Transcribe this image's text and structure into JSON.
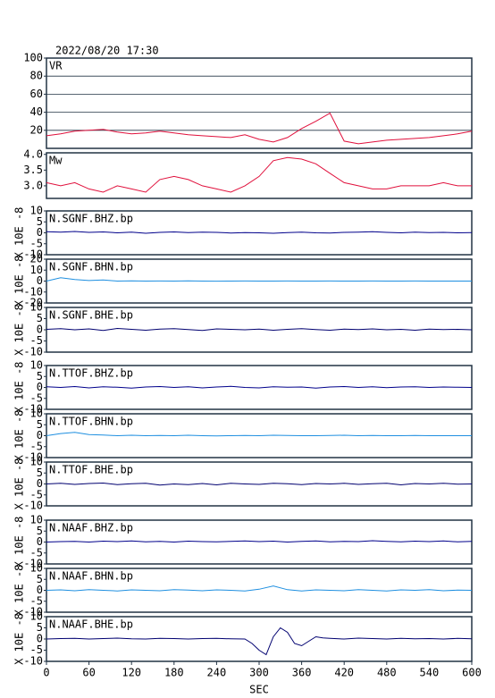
{
  "chart_data": [
    {
      "type": "line",
      "title": "2022/08/20 17:30",
      "label": "VR",
      "xlim": [
        0,
        600
      ],
      "ylim": [
        0,
        100
      ],
      "yticks": [
        20,
        40,
        60,
        80,
        100
      ],
      "grid": true,
      "x": [
        0,
        20,
        40,
        60,
        80,
        100,
        120,
        140,
        160,
        180,
        200,
        220,
        240,
        260,
        280,
        300,
        320,
        340,
        360,
        380,
        400,
        420,
        440,
        460,
        480,
        500,
        520,
        540,
        560,
        580,
        600
      ],
      "series": [
        {
          "color": "#e0103c",
          "values": [
            14,
            16,
            19,
            20,
            21,
            18,
            16,
            17,
            19,
            17,
            15,
            14,
            13,
            12,
            15,
            10,
            7,
            12,
            22,
            30,
            39,
            8,
            5,
            7,
            9,
            10,
            11,
            12,
            14,
            16,
            19
          ]
        }
      ]
    },
    {
      "type": "line",
      "label": "Mw",
      "xlim": [
        0,
        600
      ],
      "ylim": [
        2.6,
        4.05
      ],
      "yticks": [
        {
          "value": 3,
          "label": "3.0"
        },
        3.5,
        {
          "value": 4,
          "label": "4.0"
        }
      ],
      "grid": false,
      "x": [
        0,
        20,
        40,
        60,
        80,
        100,
        120,
        140,
        160,
        180,
        200,
        220,
        240,
        260,
        280,
        300,
        320,
        340,
        360,
        380,
        400,
        420,
        440,
        460,
        480,
        500,
        520,
        540,
        560,
        580,
        600
      ],
      "series": [
        {
          "color": "#e0103c",
          "values": [
            3.1,
            3.0,
            3.1,
            2.9,
            2.8,
            3.0,
            2.9,
            2.8,
            3.2,
            3.3,
            3.2,
            3.0,
            2.9,
            2.8,
            3.0,
            3.3,
            3.8,
            3.9,
            3.85,
            3.7,
            3.4,
            3.1,
            3.0,
            2.9,
            2.9,
            3.0,
            3.0,
            3.0,
            3.1,
            3.0,
            3.0
          ]
        }
      ]
    },
    {
      "type": "line",
      "label": "N.SGNF.BHZ.bp",
      "ylabel": "X 10E -8",
      "xlim": [
        0,
        600
      ],
      "ylim": [
        -10,
        10
      ],
      "yticks": [
        -10,
        -5,
        0,
        5,
        10
      ],
      "grid": false,
      "x": [
        0,
        20,
        40,
        60,
        80,
        100,
        120,
        140,
        160,
        180,
        200,
        220,
        240,
        260,
        280,
        300,
        320,
        340,
        360,
        380,
        400,
        420,
        440,
        460,
        480,
        500,
        520,
        540,
        560,
        580,
        600
      ],
      "series": [
        {
          "color": "#00008b",
          "values": [
            0.5,
            0.3,
            0.6,
            0.2,
            0.4,
            0,
            0.3,
            -0.2,
            0.2,
            0.4,
            0.1,
            0.3,
            0.2,
            -0.1,
            0.1,
            0,
            -0.2,
            0.1,
            0.3,
            0,
            -0.1,
            0.2,
            0.3,
            0.5,
            0.2,
            0,
            0.3,
            0.1,
            0.2,
            0,
            0.1
          ]
        }
      ]
    },
    {
      "type": "line",
      "label": "N.SGNF.BHN.bp",
      "ylabel": "X 10E -8",
      "xlim": [
        0,
        600
      ],
      "ylim": [
        -20,
        20
      ],
      "yticks": [
        -20,
        -10,
        0,
        10,
        20
      ],
      "grid": false,
      "x": [
        0,
        20,
        40,
        60,
        80,
        100,
        120,
        140,
        160,
        180,
        200,
        220,
        240,
        260,
        280,
        300,
        320,
        340,
        360,
        380,
        400,
        420,
        440,
        460,
        480,
        500,
        520,
        540,
        560,
        580,
        600
      ],
      "series": [
        {
          "color": "#1e8fe0",
          "values": [
            0,
            3,
            1.5,
            0.5,
            1,
            0,
            0.2,
            0,
            0.1,
            0,
            0.2,
            0,
            -0.1,
            0,
            0.1,
            0,
            0,
            0.1,
            0,
            0,
            0.1,
            0,
            0,
            0.1,
            0,
            0,
            0.1,
            0,
            0,
            0,
            0
          ]
        }
      ]
    },
    {
      "type": "line",
      "label": "N.SGNF.BHE.bp",
      "ylabel": "X 10E -8",
      "xlim": [
        0,
        600
      ],
      "ylim": [
        -10,
        10
      ],
      "yticks": [
        -10,
        -5,
        0,
        5,
        10
      ],
      "grid": false,
      "x": [
        0,
        20,
        40,
        60,
        80,
        100,
        120,
        140,
        160,
        180,
        200,
        220,
        240,
        260,
        280,
        300,
        320,
        340,
        360,
        380,
        400,
        420,
        440,
        460,
        480,
        500,
        520,
        540,
        560,
        580,
        600
      ],
      "series": [
        {
          "color": "#000070",
          "values": [
            0.2,
            0.5,
            0,
            0.4,
            -0.3,
            0.6,
            0.2,
            -0.2,
            0.3,
            0.5,
            0.1,
            -0.3,
            0.4,
            0.2,
            0,
            0.3,
            -0.2,
            0.2,
            0.5,
            0.1,
            -0.2,
            0.3,
            0.1,
            0.4,
            0,
            0.2,
            -0.2,
            0.3,
            0.1,
            0.2,
            0
          ]
        }
      ]
    },
    {
      "type": "line",
      "label": "N.TTOF.BHZ.bp",
      "ylabel": "X 10E -8",
      "xlim": [
        0,
        600
      ],
      "ylim": [
        -10,
        10
      ],
      "yticks": [
        -10,
        -5,
        0,
        5,
        10
      ],
      "grid": false,
      "x": [
        0,
        20,
        40,
        60,
        80,
        100,
        120,
        140,
        160,
        180,
        200,
        220,
        240,
        260,
        280,
        300,
        320,
        340,
        360,
        380,
        400,
        420,
        440,
        460,
        480,
        500,
        520,
        540,
        560,
        580,
        600
      ],
      "series": [
        {
          "color": "#00008b",
          "values": [
            0.3,
            0,
            0.4,
            -0.2,
            0.3,
            0.1,
            -0.3,
            0.2,
            0.4,
            0,
            0.3,
            -0.2,
            0.2,
            0.5,
            0,
            -0.2,
            0.3,
            0.1,
            0.2,
            -0.3,
            0.2,
            0.4,
            0,
            0.3,
            -0.1,
            0.2,
            0.3,
            0,
            0.2,
            0.1,
            0
          ]
        }
      ]
    },
    {
      "type": "line",
      "label": "N.TTOF.BHN.bp",
      "ylabel": "X 10E -8",
      "xlim": [
        0,
        600
      ],
      "ylim": [
        -10,
        10
      ],
      "yticks": [
        -10,
        -5,
        0,
        5,
        10
      ],
      "grid": false,
      "x": [
        0,
        20,
        40,
        60,
        80,
        100,
        120,
        140,
        160,
        180,
        200,
        220,
        240,
        260,
        280,
        300,
        320,
        340,
        360,
        380,
        400,
        420,
        440,
        460,
        480,
        500,
        520,
        540,
        560,
        580,
        600
      ],
      "series": [
        {
          "color": "#1e8fe0",
          "values": [
            0,
            1,
            1.5,
            0.5,
            0.3,
            0,
            0.2,
            0,
            0.1,
            0,
            0.2,
            0,
            -0.1,
            0,
            0.1,
            0,
            0.2,
            0.1,
            0,
            0,
            0.1,
            0.2,
            0,
            0.1,
            0,
            0,
            0.1,
            0,
            0,
            0,
            0
          ]
        }
      ]
    },
    {
      "type": "line",
      "label": "N.TTOF.BHE.bp",
      "ylabel": "X 10E -8",
      "xlim": [
        0,
        600
      ],
      "ylim": [
        -10,
        10
      ],
      "yticks": [
        -10,
        -5,
        0,
        5,
        10
      ],
      "grid": false,
      "x": [
        0,
        20,
        40,
        60,
        80,
        100,
        120,
        140,
        160,
        180,
        200,
        220,
        240,
        260,
        280,
        300,
        320,
        340,
        360,
        380,
        400,
        420,
        440,
        460,
        480,
        500,
        520,
        540,
        560,
        580,
        600
      ],
      "series": [
        {
          "color": "#000070",
          "values": [
            0,
            0.3,
            -0.2,
            0.2,
            0.4,
            -0.3,
            0.1,
            0.3,
            -0.5,
            0,
            -0.3,
            0.2,
            -0.4,
            0.3,
            0,
            -0.2,
            0.3,
            0.1,
            -0.3,
            0.2,
            0,
            0.3,
            -0.2,
            0.1,
            0.3,
            -0.4,
            0.2,
            0,
            0.3,
            -0.1,
            0
          ]
        }
      ]
    },
    {
      "type": "line",
      "label": "N.NAAF.BHZ.bp",
      "ylabel": "X 10E -8",
      "xlim": [
        0,
        600
      ],
      "ylim": [
        -10,
        10
      ],
      "yticks": [
        -10,
        -5,
        0,
        5,
        10
      ],
      "grid": false,
      "x": [
        0,
        20,
        40,
        60,
        80,
        100,
        120,
        140,
        160,
        180,
        200,
        220,
        240,
        260,
        280,
        300,
        320,
        340,
        360,
        380,
        400,
        420,
        440,
        460,
        480,
        500,
        520,
        540,
        560,
        580,
        600
      ],
      "series": [
        {
          "color": "#00008b",
          "values": [
            0,
            0.2,
            0.3,
            0,
            0.4,
            0.2,
            0.5,
            0.1,
            0.3,
            0,
            0.4,
            0.2,
            0.1,
            0.3,
            0.5,
            0.2,
            0.4,
            0,
            0.3,
            0.5,
            0.1,
            0.3,
            0.2,
            0.6,
            0.3,
            0.1,
            0.4,
            0.2,
            0.5,
            0.1,
            0.3
          ]
        }
      ]
    },
    {
      "type": "line",
      "label": "N.NAAF.BHN.bp",
      "ylabel": "X 10E -8",
      "xlim": [
        0,
        600
      ],
      "ylim": [
        -10,
        10
      ],
      "yticks": [
        -10,
        -5,
        0,
        5,
        10
      ],
      "grid": false,
      "x": [
        0,
        20,
        40,
        60,
        80,
        100,
        120,
        140,
        160,
        180,
        200,
        220,
        240,
        260,
        280,
        300,
        320,
        340,
        360,
        380,
        400,
        420,
        440,
        460,
        480,
        500,
        520,
        540,
        560,
        580,
        600
      ],
      "series": [
        {
          "color": "#1e8fe0",
          "values": [
            0,
            0.2,
            -0.2,
            0.3,
            0,
            -0.3,
            0.2,
            0,
            -0.2,
            0.3,
            0.1,
            -0.2,
            0.2,
            0,
            -0.3,
            0.5,
            2,
            0.3,
            -0.3,
            0.2,
            0,
            -0.2,
            0.3,
            0,
            -0.3,
            0.2,
            0,
            0.3,
            -0.2,
            0.1,
            0
          ]
        }
      ]
    },
    {
      "type": "line",
      "label": "N.NAAF.BHE.bp",
      "ylabel": "X 10E -8",
      "xlabel": "SEC",
      "xlim": [
        0,
        600
      ],
      "ylim": [
        -10,
        10
      ],
      "yticks": [
        -10,
        -5,
        0,
        5,
        10
      ],
      "grid": false,
      "xticks": [
        0,
        60,
        120,
        180,
        240,
        300,
        360,
        420,
        480,
        540,
        600
      ],
      "x": [
        0,
        20,
        40,
        60,
        80,
        100,
        120,
        140,
        160,
        180,
        200,
        220,
        240,
        260,
        280,
        290,
        300,
        310,
        320,
        330,
        340,
        350,
        360,
        370,
        380,
        390,
        400,
        420,
        440,
        460,
        480,
        500,
        520,
        540,
        560,
        580,
        600
      ],
      "series": [
        {
          "color": "#000070",
          "values": [
            0,
            0.2,
            0.3,
            0,
            0.2,
            0.4,
            0.1,
            0,
            0.3,
            0.2,
            0,
            0.2,
            0.3,
            0.1,
            0,
            -2,
            -5,
            -7,
            1,
            5,
            3,
            -2,
            -3,
            -1,
            1,
            0.5,
            0.3,
            0,
            0.4,
            0.2,
            0,
            0.3,
            0.1,
            0.2,
            0,
            0.3,
            0.1
          ]
        }
      ]
    }
  ]
}
